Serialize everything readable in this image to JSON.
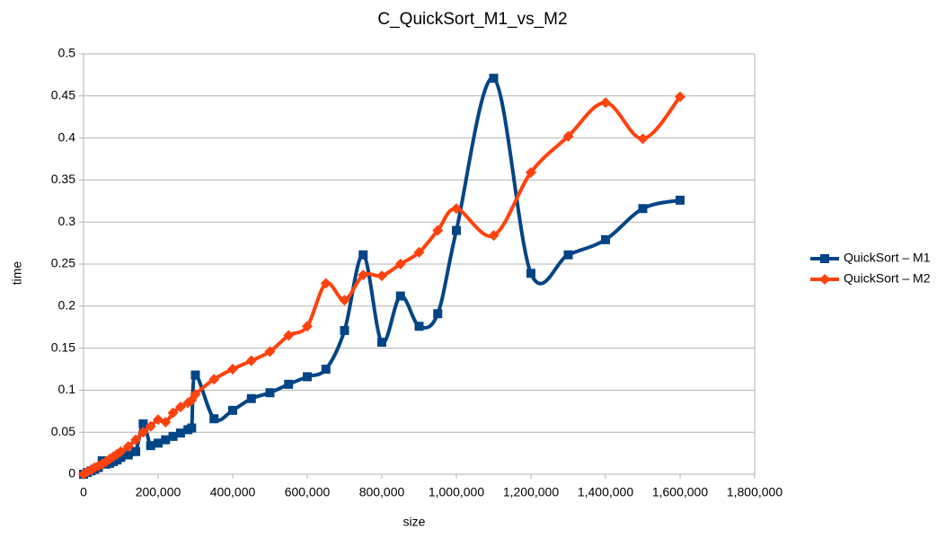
{
  "chart_data": {
    "type": "line",
    "title": "C_QuickSort_M1_vs_M2",
    "x_label": "size",
    "y_label": "time",
    "x": [
      0,
      10000,
      20000,
      30000,
      40000,
      50000,
      60000,
      70000,
      80000,
      90000,
      100000,
      120000,
      140000,
      160000,
      180000,
      200000,
      220000,
      240000,
      260000,
      280000,
      290000,
      300000,
      350000,
      400000,
      450000,
      500000,
      550000,
      600000,
      650000,
      700000,
      750000,
      800000,
      850000,
      900000,
      950000,
      1000000,
      1100000,
      1200000,
      1300000,
      1400000,
      1500000,
      1600000
    ],
    "series": [
      {
        "name": "QuickSort – M1",
        "color": "#004586",
        "marker": "square",
        "values": [
          0,
          0.002,
          0.004,
          0.006,
          0.008,
          0.016,
          0.012,
          0.013,
          0.015,
          0.017,
          0.02,
          0.023,
          0.027,
          0.06,
          0.034,
          0.037,
          0.041,
          0.045,
          0.049,
          0.053,
          0.055,
          0.118,
          0.066,
          0.076,
          0.09,
          0.097,
          0.107,
          0.116,
          0.125,
          0.171,
          0.261,
          0.157,
          0.212,
          0.176,
          0.191,
          0.29,
          0.471,
          0.239,
          0.261,
          0.279,
          0.316,
          0.326
        ]
      },
      {
        "name": "QuickSort – M2",
        "color": "#ff420e",
        "marker": "diamond",
        "values": [
          0,
          0.003,
          0.005,
          0.008,
          0.01,
          0.012,
          0.015,
          0.018,
          0.021,
          0.024,
          0.027,
          0.033,
          0.041,
          0.05,
          0.057,
          0.065,
          0.062,
          0.073,
          0.08,
          0.085,
          0.088,
          0.095,
          0.113,
          0.125,
          0.135,
          0.146,
          0.165,
          0.176,
          0.227,
          0.207,
          0.237,
          0.236,
          0.25,
          0.264,
          0.29,
          0.316,
          0.284,
          0.359,
          0.402,
          0.442,
          0.399,
          0.449
        ]
      }
    ],
    "xlim": [
      0,
      1800000
    ],
    "xticks": [
      0,
      {
        "value": 200000,
        "label": "200,000"
      },
      {
        "value": 400000,
        "label": "400,000"
      },
      {
        "value": 600000,
        "label": "600,000"
      },
      {
        "value": 800000,
        "label": "800,000"
      },
      {
        "value": 1000000,
        "label": "1,000,000"
      },
      {
        "value": 1200000,
        "label": "1,200,000"
      },
      {
        "value": 1400000,
        "label": "1,400,000"
      },
      {
        "value": 1600000,
        "label": "1,600,000"
      },
      {
        "value": 1800000,
        "label": "1,800,000"
      }
    ],
    "ylim": [
      0,
      0.5
    ],
    "yticks": [
      0,
      0.05,
      0.1,
      0.15,
      0.2,
      0.25,
      0.3,
      0.35,
      0.4,
      0.45,
      0.5
    ],
    "grid": true,
    "legend": "right"
  }
}
